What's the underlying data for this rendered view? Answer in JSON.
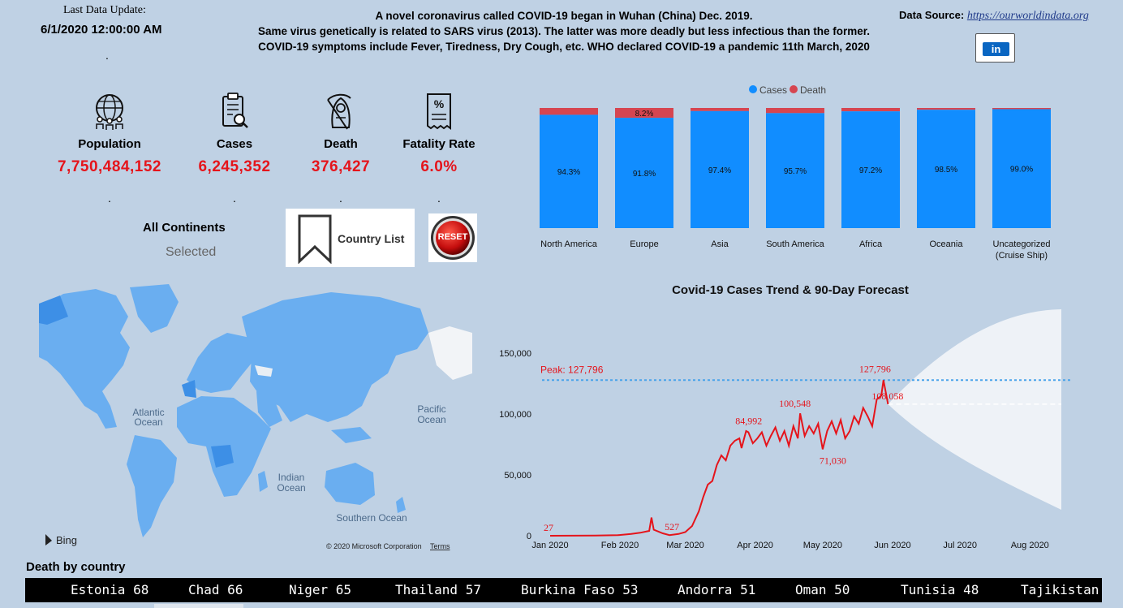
{
  "header": {
    "update_label": "Last Data Update:",
    "update_value": "6/1/2020 12:00:00 AM",
    "dot": ".",
    "info_lines": [
      "A novel coronavirus called COVID-19 began in Wuhan (China) Dec. 2019.",
      "Same virus genetically is related to SARS virus (2013). The latter was more deadly but less infectious than the former.",
      "COVID-19 symptoms include Fever, Tiredness, Dry Cough, etc. WHO declared COVID-19 a pandemic 11th March, 2020"
    ],
    "source_label": "Data Source:",
    "source_link": "https://ourworldindata.org",
    "linkedin_label": "in"
  },
  "kpis": [
    {
      "label": "Population",
      "value": "7,750,484,152",
      "icon": "globe-people-icon"
    },
    {
      "label": "Cases",
      "value": "6,245,352",
      "icon": "clipboard-search-icon"
    },
    {
      "label": "Death",
      "value": "376,427",
      "icon": "grim-reaper-icon"
    },
    {
      "label": "Fatality Rate",
      "value": "6.0%",
      "icon": "percent-receipt-icon"
    }
  ],
  "filter": {
    "title": "All Continents",
    "subtitle": "Selected",
    "country_list_label": "Country List",
    "reset_label": "RESET"
  },
  "map": {
    "labels": [
      "Atlantic Ocean",
      "Pacific Ocean",
      "Indian Ocean",
      "Southern Ocean"
    ],
    "bing_label": "Bing",
    "copyright": "© 2020 Microsoft Corporation",
    "terms": "Terms"
  },
  "chart_data": [
    {
      "type": "bar",
      "stacked": true,
      "percent": true,
      "legend": [
        "Cases",
        "Death"
      ],
      "legend_position": "top",
      "colors": {
        "Cases": "#118dff",
        "Death": "#d64550"
      },
      "categories": [
        "North America",
        "Europe",
        "Asia",
        "South America",
        "Africa",
        "Oceania",
        "Uncategorized (Cruise Ship)"
      ],
      "series": [
        {
          "name": "Cases",
          "values": [
            94.3,
            91.8,
            97.4,
            95.7,
            97.2,
            98.5,
            99.0
          ],
          "labels": [
            "94.3%",
            "91.8%",
            "97.4%",
            "95.7%",
            "97.2%",
            "98.5%",
            "99.0%"
          ]
        },
        {
          "name": "Death",
          "values": [
            5.7,
            8.2,
            2.6,
            4.3,
            2.8,
            1.5,
            1.0
          ],
          "labels": [
            "",
            "8.2%",
            "",
            "",
            "",
            "",
            ""
          ]
        }
      ]
    },
    {
      "type": "line",
      "title": "Covid-19 Cases Trend & 90-Day Forecast",
      "x_ticks": [
        "Jan 2020",
        "Feb 2020",
        "Mar 2020",
        "Apr 2020",
        "May 2020",
        "Jun 2020",
        "Jul 2020",
        "Aug 2020"
      ],
      "y_ticks": [
        "0",
        "50,000",
        "100,000",
        "150,000"
      ],
      "ylim": [
        0,
        170000
      ],
      "xlim_days": [
        0,
        232
      ],
      "peak_label": "Peak: 127,796",
      "peak_value": 127796,
      "forecast_value": 108058,
      "line_color": "#e5141b",
      "annotations": [
        {
          "x": 0,
          "y": 27,
          "text": "27"
        },
        {
          "x": 53,
          "y": 527,
          "text": "527"
        },
        {
          "x": 93,
          "y": 84992,
          "text": "84,992"
        },
        {
          "x": 117,
          "y": 100548,
          "text": "100,548"
        },
        {
          "x": 121,
          "y": 71030,
          "text": "71,030"
        },
        {
          "x": 153,
          "y": 127796,
          "text": "127,796"
        },
        {
          "x": 154,
          "y": 108058,
          "text": "108,058"
        }
      ],
      "series": [
        {
          "values": [
            [
              0,
              27
            ],
            [
              10,
              80
            ],
            [
              20,
              200
            ],
            [
              30,
              500
            ],
            [
              36,
              1500
            ],
            [
              40,
              2500
            ],
            [
              44,
              4000
            ],
            [
              45,
              15000
            ],
            [
              46,
              5000
            ],
            [
              50,
              2000
            ],
            [
              53,
              527
            ],
            [
              57,
              1500
            ],
            [
              60,
              3000
            ],
            [
              63,
              8000
            ],
            [
              66,
              20000
            ],
            [
              68,
              32000
            ],
            [
              70,
              42000
            ],
            [
              72,
              45000
            ],
            [
              74,
              58000
            ],
            [
              76,
              66000
            ],
            [
              78,
              62000
            ],
            [
              80,
              74000
            ],
            [
              82,
              78000
            ],
            [
              84,
              80000
            ],
            [
              85,
              72000
            ],
            [
              87,
              86000
            ],
            [
              88,
              84992
            ],
            [
              90,
              76000
            ],
            [
              92,
              80000
            ],
            [
              94,
              85000
            ],
            [
              96,
              74000
            ],
            [
              98,
              82000
            ],
            [
              100,
              89000
            ],
            [
              102,
              78000
            ],
            [
              104,
              86000
            ],
            [
              106,
              74000
            ],
            [
              108,
              90000
            ],
            [
              110,
              80000
            ],
            [
              111,
              100548
            ],
            [
              113,
              82000
            ],
            [
              115,
              90000
            ],
            [
              117,
              84000
            ],
            [
              119,
              92000
            ],
            [
              121,
              71030
            ],
            [
              123,
              86000
            ],
            [
              125,
              94000
            ],
            [
              127,
              84000
            ],
            [
              129,
              95000
            ],
            [
              131,
              80000
            ],
            [
              133,
              86000
            ],
            [
              135,
              98000
            ],
            [
              137,
              92000
            ],
            [
              139,
              105000
            ],
            [
              141,
              98000
            ],
            [
              143,
              90000
            ],
            [
              145,
              112000
            ],
            [
              147,
              115000
            ],
            [
              148,
              127796
            ],
            [
              149,
              118000
            ],
            [
              150,
              108058
            ]
          ]
        }
      ]
    }
  ],
  "ticker": {
    "title": "Death by country",
    "items": [
      "Estonia 68",
      "Chad 66",
      "Niger 65",
      "Thailand 57",
      "Burkina Faso 53",
      "Andorra 51",
      "Oman 50",
      "Tunisia 48",
      "Tajikistan"
    ]
  }
}
